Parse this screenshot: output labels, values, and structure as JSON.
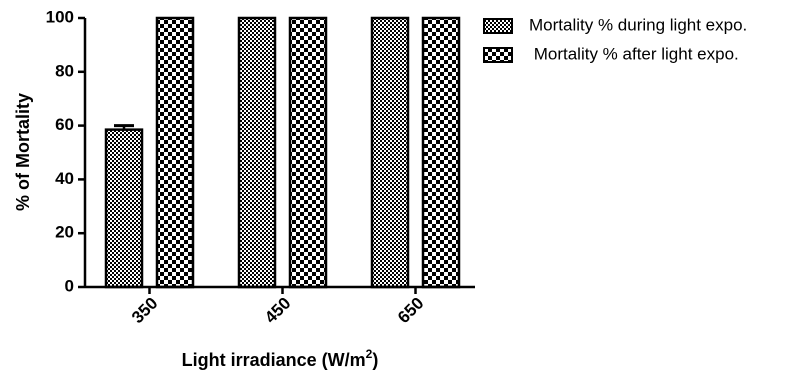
{
  "chart_data": {
    "type": "bar",
    "categories": [
      "350",
      "450",
      "650"
    ],
    "series": [
      {
        "name": "Mortality % during light expo.",
        "values": [
          58.5,
          100,
          100
        ],
        "error": [
          1.5,
          0,
          0
        ],
        "pattern": "fine-checker"
      },
      {
        "name": " Mortality % after light expo.",
        "values": [
          100,
          100,
          100
        ],
        "error": [
          0,
          0,
          0
        ],
        "pattern": "coarse-checker"
      }
    ],
    "xlabel": "Light irradiance (W/m",
    "xlabel_sup": "2",
    "xlabel_end": ")",
    "ylabel": "% of Mortality",
    "ylim": [
      0,
      100
    ],
    "yticks": [
      0,
      20,
      40,
      60,
      80,
      100
    ],
    "ytick_labels": [
      "0",
      "20",
      "40",
      "60",
      "80",
      "100"
    ],
    "legend_position": "top-right",
    "grid": false
  },
  "colors": {
    "bar_stroke": "#000000",
    "pattern_dark": "#000000",
    "pattern_light": "#ffffff"
  }
}
